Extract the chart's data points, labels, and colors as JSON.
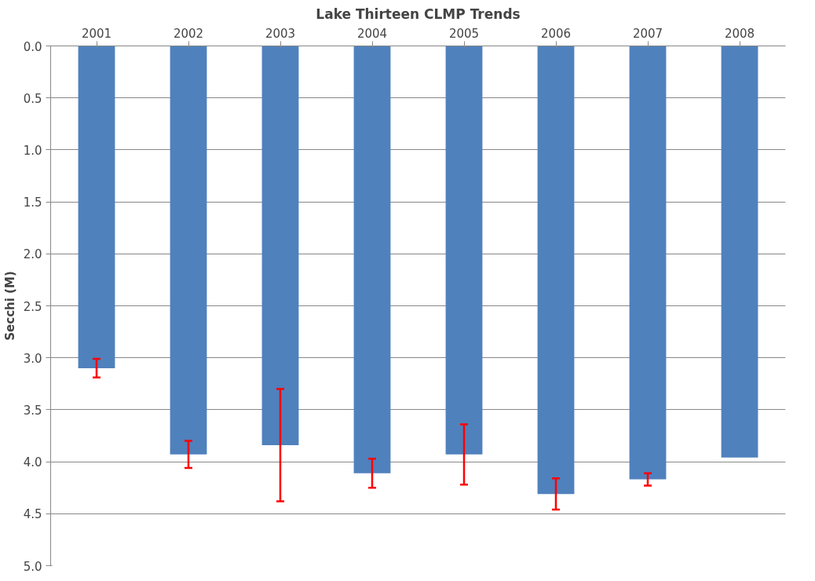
{
  "chart_data": {
    "type": "bar",
    "title": "Lake Thirteen CLMP Trends",
    "ylabel": "Secchi (M)",
    "categories": [
      "2001",
      "2002",
      "2003",
      "2004",
      "2005",
      "2006",
      "2007",
      "2008"
    ],
    "values": [
      3.1,
      3.93,
      3.84,
      4.11,
      3.93,
      4.31,
      4.17,
      3.96
    ],
    "errors": [
      0.09,
      0.13,
      0.54,
      0.14,
      0.29,
      0.15,
      0.06,
      null
    ],
    "color": "#4f81bd",
    "ylim": [
      5.0,
      0.0
    ],
    "yticks": [
      {
        "value": 0,
        "label": "0.0"
      },
      {
        "value": 0.5,
        "label": "0.5"
      },
      {
        "value": 1,
        "label": "1.0"
      },
      {
        "value": 1.5,
        "label": "1.5"
      },
      {
        "value": 2,
        "label": "2.0"
      },
      {
        "value": 2.5,
        "label": "2.5"
      },
      {
        "value": 3,
        "label": "3.0"
      },
      {
        "value": 3.5,
        "label": "3.5"
      },
      {
        "value": 4,
        "label": "4.0"
      },
      {
        "value": 4.5,
        "label": "4.5"
      },
      {
        "value": 5,
        "label": "5.0"
      }
    ],
    "grid": "y"
  }
}
